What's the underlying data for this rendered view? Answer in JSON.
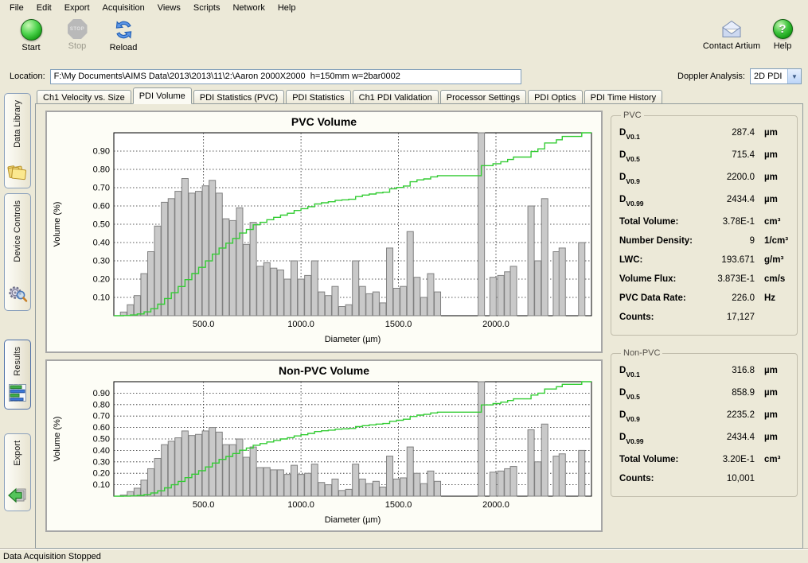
{
  "menu": {
    "items": [
      "File",
      "Edit",
      "Export",
      "Acquisition",
      "Views",
      "Scripts",
      "Network",
      "Help"
    ]
  },
  "toolbar": {
    "start_label": "Start",
    "stop_label": "Stop",
    "stop_badge": "STOP",
    "reload_label": "Reload",
    "contact_label": "Contact Artium",
    "help_label": "Help",
    "help_glyph": "?"
  },
  "location": {
    "label": "Location:",
    "value": "F:\\My Documents\\AIMS Data\\2013\\2013\\11\\2:\\Aaron 2000X2000  h=150mm w=2bar0002"
  },
  "doppler": {
    "label": "Doppler Analysis:",
    "value": "2D PDI"
  },
  "side_tabs": [
    {
      "label": "Data Library",
      "icon": "folder-icon",
      "selected": false
    },
    {
      "label": "Device Controls",
      "icon": "gears-icon",
      "selected": false
    },
    {
      "label": "Results",
      "icon": "bar-chart-icon",
      "selected": true
    },
    {
      "label": "Export",
      "icon": "export-arrow-icon",
      "selected": false
    }
  ],
  "tabs": [
    {
      "label": "Ch1 Velocity vs. Size",
      "active": false
    },
    {
      "label": "PDI Volume",
      "active": true
    },
    {
      "label": "PDI Statistics (PVC)",
      "active": false
    },
    {
      "label": "PDI Statistics",
      "active": false
    },
    {
      "label": "Ch1 PDI Validation",
      "active": false
    },
    {
      "label": "Processor Settings",
      "active": false
    },
    {
      "label": "PDI Optics",
      "active": false
    },
    {
      "label": "PDI Time History",
      "active": false
    }
  ],
  "stats_pvc": {
    "title": "PVC",
    "rows": [
      {
        "label": "D",
        "sub": "V0.1",
        "value": "287.4",
        "unit": "µm"
      },
      {
        "label": "D",
        "sub": "V0.5",
        "value": "715.4",
        "unit": "µm"
      },
      {
        "label": "D",
        "sub": "V0.9",
        "value": "2200.0",
        "unit": "µm"
      },
      {
        "label": "D",
        "sub": "V0.99",
        "value": "2434.4",
        "unit": "µm"
      },
      {
        "label": "Total Volume:",
        "value": "3.78E-1",
        "unit": "cm³"
      },
      {
        "label": "Number Density:",
        "value": "9",
        "unit": "1/cm³"
      },
      {
        "label": "LWC:",
        "value": "193.671",
        "unit": "g/m³"
      },
      {
        "label": "Volume Flux:",
        "value": "3.873E-1",
        "unit": "cm/s"
      },
      {
        "label": "PVC Data Rate:",
        "value": "226.0",
        "unit": "Hz"
      },
      {
        "label": "Counts:",
        "value": "17,127",
        "unit": ""
      }
    ]
  },
  "stats_nonpvc": {
    "title": "Non-PVC",
    "rows": [
      {
        "label": "D",
        "sub": "V0.1",
        "value": "316.8",
        "unit": "µm"
      },
      {
        "label": "D",
        "sub": "V0.5",
        "value": "858.9",
        "unit": "µm"
      },
      {
        "label": "D",
        "sub": "V0.9",
        "value": "2235.2",
        "unit": "µm"
      },
      {
        "label": "D",
        "sub": "V0.99",
        "value": "2434.4",
        "unit": "µm"
      },
      {
        "label": "Total Volume:",
        "value": "3.20E-1",
        "unit": "cm³"
      },
      {
        "label": "Counts:",
        "value": "10,001",
        "unit": ""
      }
    ]
  },
  "status": {
    "text": "Data Acquisition Stopped"
  },
  "chart_data": [
    {
      "type": "bar",
      "title": "PVC Volume",
      "xlabel": "Diameter (µm)",
      "ylabel": "Volume (%)",
      "xlim": [
        40,
        2490
      ],
      "ylim": [
        0,
        1.0
      ],
      "xticks": [
        500,
        1000,
        1500,
        2000
      ],
      "xtick_labels": [
        "500.0",
        "1000.0",
        "1500.0",
        "2000.0"
      ],
      "yticks": [
        0.1,
        0.2,
        0.3,
        0.4,
        0.5,
        0.6,
        0.7,
        0.8,
        0.9
      ],
      "ytick_labels": [
        "0.10",
        "0.20",
        "0.30",
        "0.40",
        "0.50",
        "0.60",
        "0.70",
        "0.80",
        "0.90"
      ],
      "grid": true,
      "bar_color": "#c9c9c9",
      "bar_edge_color": "#808080",
      "line_color": "#33cc33",
      "line_meaning": "normalized cumulative volume",
      "bars": {
        "x": [
          90,
          125,
          160,
          195,
          230,
          265,
          300,
          335,
          370,
          405,
          440,
          475,
          510,
          545,
          580,
          615,
          650,
          685,
          720,
          755,
          790,
          825,
          860,
          895,
          930,
          965,
          1000,
          1035,
          1070,
          1105,
          1140,
          1175,
          1210,
          1245,
          1280,
          1315,
          1350,
          1385,
          1420,
          1455,
          1490,
          1525,
          1560,
          1595,
          1630,
          1665,
          1700,
          1925,
          1985,
          2025,
          2060,
          2090,
          2180,
          2215,
          2250,
          2310,
          2340,
          2440
        ],
        "v": [
          0.02,
          0.06,
          0.11,
          0.23,
          0.35,
          0.49,
          0.62,
          0.64,
          0.68,
          0.75,
          0.67,
          0.68,
          0.71,
          0.74,
          0.67,
          0.53,
          0.52,
          0.59,
          0.39,
          0.51,
          0.27,
          0.29,
          0.26,
          0.25,
          0.2,
          0.3,
          0.2,
          0.22,
          0.3,
          0.13,
          0.11,
          0.16,
          0.05,
          0.06,
          0.3,
          0.16,
          0.12,
          0.13,
          0.07,
          0.37,
          0.15,
          0.16,
          0.46,
          0.21,
          0.1,
          0.23,
          0.13,
          1.1,
          0.21,
          0.22,
          0.24,
          0.27,
          0.6,
          0.3,
          0.64,
          0.35,
          0.37,
          0.4
        ]
      }
    },
    {
      "type": "bar",
      "title": "Non-PVC Volume",
      "xlabel": "Diameter (µm)",
      "ylabel": "Volume (%)",
      "xlim": [
        40,
        2490
      ],
      "ylim": [
        0,
        1.0
      ],
      "xticks": [
        500,
        1000,
        1500,
        2000
      ],
      "xtick_labels": [
        "500.0",
        "1000.0",
        "1500.0",
        "2000.0"
      ],
      "yticks": [
        0.1,
        0.2,
        0.3,
        0.4,
        0.5,
        0.6,
        0.7,
        0.8,
        0.9
      ],
      "ytick_labels": [
        "0.10",
        "0.20",
        "0.30",
        "0.40",
        "0.50",
        "0.60",
        "0.70",
        "0.80",
        "0.90"
      ],
      "grid": true,
      "bar_color": "#c9c9c9",
      "bar_edge_color": "#808080",
      "line_color": "#33cc33",
      "line_meaning": "normalized cumulative volume",
      "bars": {
        "x": [
          90,
          125,
          160,
          195,
          230,
          265,
          300,
          335,
          370,
          405,
          440,
          475,
          510,
          545,
          580,
          615,
          650,
          685,
          720,
          755,
          790,
          825,
          860,
          895,
          930,
          965,
          1000,
          1035,
          1070,
          1105,
          1140,
          1175,
          1210,
          1245,
          1280,
          1315,
          1350,
          1385,
          1420,
          1455,
          1490,
          1525,
          1560,
          1595,
          1630,
          1665,
          1700,
          1925,
          1985,
          2025,
          2060,
          2090,
          2180,
          2215,
          2250,
          2310,
          2340,
          2440
        ],
        "v": [
          0.01,
          0.04,
          0.07,
          0.14,
          0.24,
          0.33,
          0.45,
          0.48,
          0.51,
          0.57,
          0.53,
          0.54,
          0.57,
          0.6,
          0.56,
          0.45,
          0.45,
          0.5,
          0.34,
          0.43,
          0.25,
          0.25,
          0.23,
          0.23,
          0.19,
          0.27,
          0.19,
          0.2,
          0.28,
          0.12,
          0.1,
          0.15,
          0.05,
          0.06,
          0.28,
          0.15,
          0.11,
          0.13,
          0.08,
          0.35,
          0.15,
          0.16,
          0.43,
          0.2,
          0.11,
          0.22,
          0.13,
          1.1,
          0.21,
          0.22,
          0.24,
          0.26,
          0.58,
          0.3,
          0.63,
          0.35,
          0.37,
          0.4
        ]
      }
    }
  ]
}
